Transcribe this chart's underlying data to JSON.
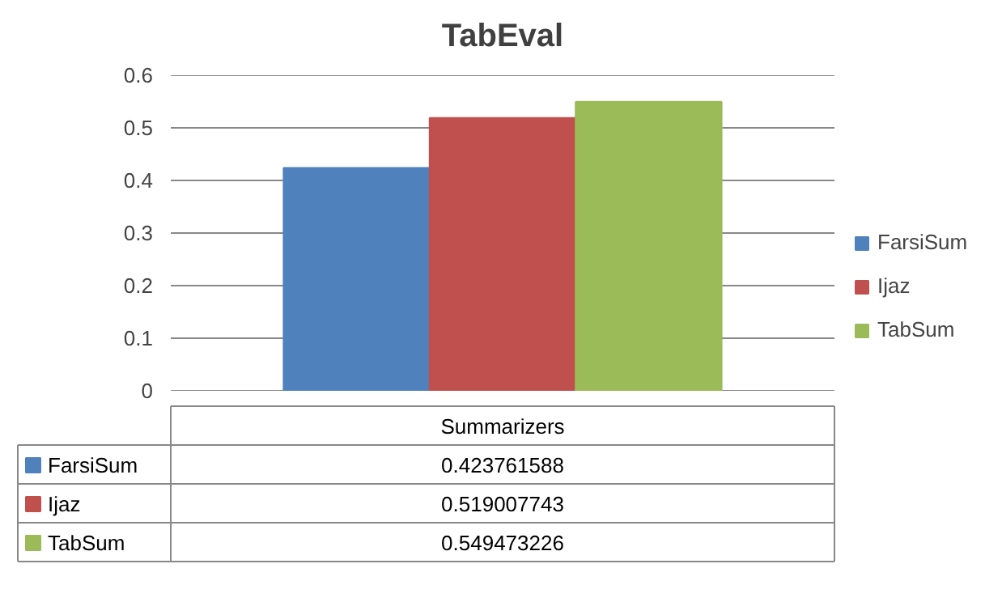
{
  "chart_data": {
    "type": "bar",
    "title": "TabEval",
    "categories": [
      "Summarizers"
    ],
    "series": [
      {
        "name": "FarsiSum",
        "color": "#4f81bd",
        "values": [
          0.423761588
        ]
      },
      {
        "name": "Ijaz",
        "color": "#c0504d",
        "values": [
          0.519007743
        ]
      },
      {
        "name": "TabSum",
        "color": "#9bbb59",
        "values": [
          0.549473226
        ]
      }
    ],
    "ylim": [
      0,
      0.6
    ],
    "yticks": [
      0,
      0.1,
      0.2,
      0.3,
      0.4,
      0.5,
      0.6
    ],
    "grid": "y",
    "legend": "right",
    "tick_labels": "y",
    "annotations": [
      "0.423761588",
      "0.519007743",
      "0.549473226"
    ]
  }
}
